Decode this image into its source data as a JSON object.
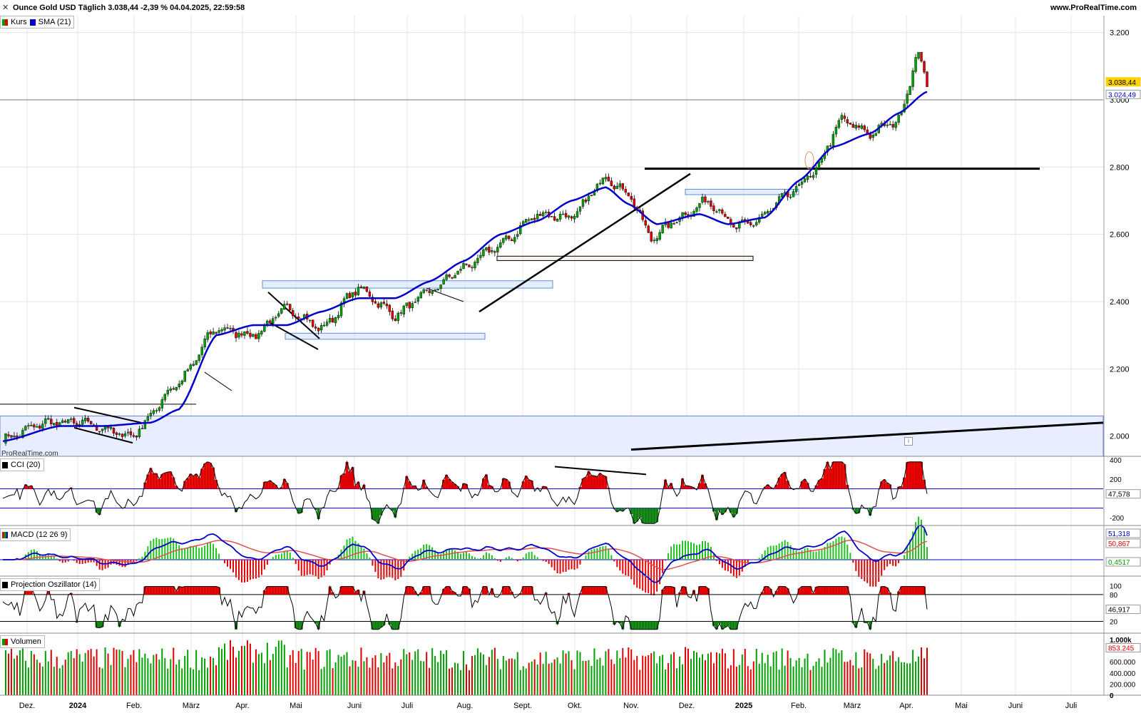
{
  "header": {
    "title": "Ounce Gold USD Täglich 3.038,44 -2,39 % 04.04.2025, 22:59:58",
    "brand": "www.ProRealTime.com",
    "watermark": "ProRealTime.com"
  },
  "colors": {
    "up": "#00a000",
    "down": "#e00000",
    "sma": "#0000c8",
    "macd_signal": "#e05050",
    "grid": "#e4e4e4",
    "zone_fill": "#e8eeff",
    "price_tag": "#ffd200"
  },
  "legends": {
    "price": [
      {
        "label": "Kurs",
        "icon": "updown-swatch"
      },
      {
        "label": "SMA (21)",
        "icon": "blue-swatch"
      }
    ],
    "cci": "CCI (20)",
    "macd": "MACD (12 26 9)",
    "projection": "Projection Oszillator (14)",
    "volume": "Volumen"
  },
  "chart_data": [
    {
      "type": "candlestick",
      "name": "Ounce Gold USD",
      "ylim": [
        1940,
        3250
      ],
      "yticks": [
        {
          "v": 2000,
          "label": "2.000"
        },
        {
          "v": 2200,
          "label": "2.200"
        },
        {
          "v": 2400,
          "label": "2.400"
        },
        {
          "v": 2600,
          "label": "2.600"
        },
        {
          "v": 2800,
          "label": "2.800"
        },
        {
          "v": 3000,
          "label": "3.000"
        },
        {
          "v": 3200,
          "label": "3.200"
        }
      ],
      "last_price": {
        "value": 3038.44,
        "label": "3.038,44"
      },
      "sma_last": {
        "value": 3024.49,
        "label": "3.024,49"
      },
      "x_labels": [
        "Dez.",
        "2024",
        "Feb.",
        "März",
        "Apr.",
        "Mai",
        "Juni",
        "Juli",
        "Aug.",
        "Sept.",
        "Okt.",
        "Nov.",
        "Dez.",
        "2025",
        "Feb.",
        "März",
        "Apr.",
        "Mai",
        "Juni",
        "Juli"
      ],
      "close_anchors": [
        [
          0,
          1990
        ],
        [
          15,
          2040
        ],
        [
          28,
          2040
        ],
        [
          45,
          2000
        ],
        [
          62,
          2160
        ],
        [
          75,
          2320
        ],
        [
          88,
          2300
        ],
        [
          100,
          2380
        ],
        [
          112,
          2320
        ],
        [
          125,
          2440
        ],
        [
          138,
          2360
        ],
        [
          150,
          2430
        ],
        [
          162,
          2500
        ],
        [
          175,
          2570
        ],
        [
          188,
          2660
        ],
        [
          200,
          2650
        ],
        [
          212,
          2770
        ],
        [
          220,
          2720
        ],
        [
          228,
          2590
        ],
        [
          238,
          2650
        ],
        [
          248,
          2700
        ],
        [
          258,
          2620
        ],
        [
          265,
          2640
        ],
        [
          275,
          2710
        ],
        [
          285,
          2780
        ],
        [
          295,
          2940
        ],
        [
          305,
          2900
        ],
        [
          315,
          2940
        ],
        [
          322,
          3140
        ],
        [
          325,
          3038
        ]
      ],
      "sma_anchors": [
        [
          0,
          1985
        ],
        [
          20,
          2030
        ],
        [
          35,
          2030
        ],
        [
          52,
          2040
        ],
        [
          62,
          2080
        ],
        [
          75,
          2300
        ],
        [
          88,
          2330
        ],
        [
          100,
          2330
        ],
        [
          112,
          2370
        ],
        [
          125,
          2410
        ],
        [
          138,
          2410
        ],
        [
          150,
          2460
        ],
        [
          162,
          2520
        ],
        [
          175,
          2600
        ],
        [
          188,
          2640
        ],
        [
          200,
          2700
        ],
        [
          212,
          2740
        ],
        [
          220,
          2690
        ],
        [
          230,
          2630
        ],
        [
          245,
          2660
        ],
        [
          255,
          2630
        ],
        [
          268,
          2650
        ],
        [
          280,
          2760
        ],
        [
          292,
          2860
        ],
        [
          305,
          2900
        ],
        [
          315,
          2960
        ],
        [
          325,
          3024
        ]
      ]
    },
    {
      "type": "line",
      "name": "CCI (20)",
      "ylim": [
        -280,
        430
      ],
      "yticks": [
        {
          "v": 400,
          "label": "400"
        },
        {
          "v": 200,
          "label": "200"
        },
        {
          "v": -200,
          "label": "-200"
        }
      ],
      "hlines": [
        100,
        -100
      ],
      "last_value": {
        "value": 47.578,
        "label": "47,578"
      }
    },
    {
      "type": "line",
      "name": "MACD (12 26 9)",
      "last_values": [
        {
          "label": "51,318",
          "series": "macd"
        },
        {
          "label": "50,867",
          "series": "signal"
        },
        {
          "label": "0,4517",
          "series": "histogram"
        }
      ]
    },
    {
      "type": "line",
      "name": "Projection Oszillator (14)",
      "ylim": [
        0,
        110
      ],
      "yticks": [
        {
          "v": 100,
          "label": "100"
        },
        {
          "v": 80,
          "label": "80"
        },
        {
          "v": 20,
          "label": "20"
        }
      ],
      "last_value": {
        "value": 46.917,
        "label": "46,917"
      }
    },
    {
      "type": "bar",
      "name": "Volumen",
      "yticks": [
        {
          "v": 1000000,
          "label": "1.000k"
        },
        {
          "v": 600000,
          "label": "600.000"
        },
        {
          "v": 400000,
          "label": "400.000"
        },
        {
          "v": 200000,
          "label": "200.000"
        },
        {
          "v": 0,
          "label": "0"
        }
      ],
      "last_value": {
        "value": 853245,
        "label": "853.245"
      }
    }
  ]
}
